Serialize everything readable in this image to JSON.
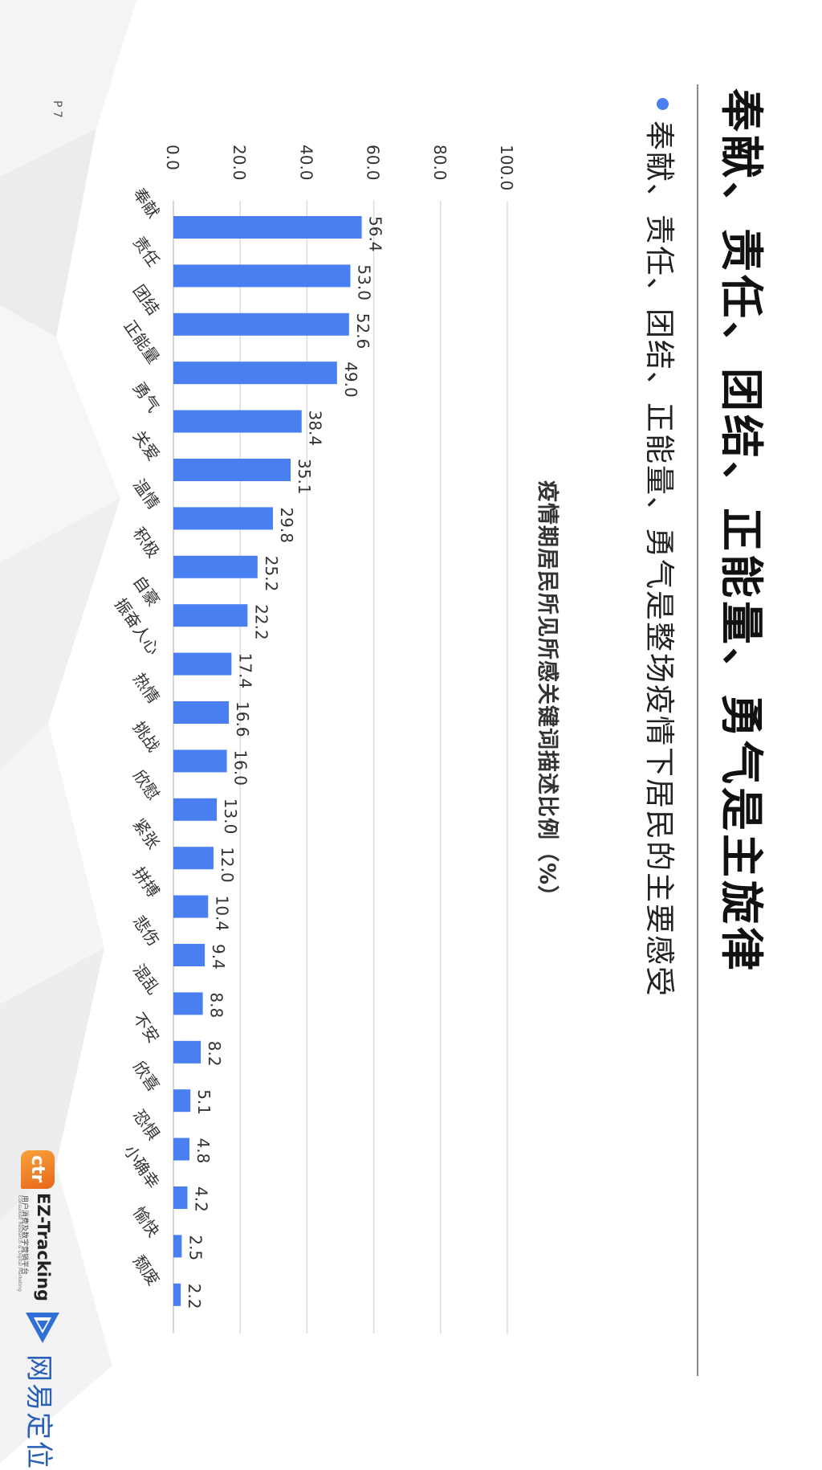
{
  "page": {
    "title": "奉献、责任、团结、正能量、勇气是主旋律",
    "subtitle": "奉献、责任、团结、正能量、勇气是整场疫情下居民的主要感受",
    "page_number": "P 7"
  },
  "logos": {
    "ez_tracking_name": "EZ-Tracking",
    "ez_tracking_cn": "用户消费及数字营销平台",
    "ez_tracking_en": "Consumer Research & Digital Marketing",
    "ctr_mark": "ctr",
    "netease_name": "网易定位"
  },
  "colors": {
    "bar": "#4a7ff2",
    "grid": "#dcdcdc",
    "accent": "#4a7ff2"
  },
  "chart_data": {
    "type": "bar",
    "orientation": "vertical-bars (page rotated 90° clockwise)",
    "title": "疫情期居民所见所感关键词描述比例（%）",
    "categories": [
      "奉献",
      "责任",
      "团结",
      "正能量",
      "勇气",
      "关爱",
      "温情",
      "积极",
      "自豪",
      "振奋人心",
      "热情",
      "挑战",
      "欣慰",
      "紧张",
      "拼搏",
      "悲伤",
      "混乱",
      "不安",
      "欣喜",
      "恐惧",
      "小确幸",
      "愉快",
      "颓废"
    ],
    "values": [
      56.4,
      53.0,
      52.6,
      49.0,
      38.4,
      35.1,
      29.8,
      25.2,
      22.2,
      17.4,
      16.6,
      16.0,
      13.0,
      12.0,
      10.4,
      9.4,
      8.8,
      8.2,
      5.1,
      4.8,
      4.2,
      2.5,
      2.2
    ],
    "value_labels": [
      "56.4",
      "53.0",
      "52.6",
      "49.0",
      "38.4",
      "35.1",
      "29.8",
      "25.2",
      "22.2",
      "17.4",
      "16.6",
      "16.0",
      "13.0",
      "12.0",
      "10.4",
      "9.4",
      "8.8",
      "8.2",
      "5.1",
      "4.8",
      "4.2",
      "2.5",
      "2.2"
    ],
    "ylim": [
      0,
      100
    ],
    "yticks": [
      "0.0",
      "20.0",
      "40.0",
      "60.0",
      "80.0",
      "100.0"
    ],
    "grid": true,
    "legend": "none"
  }
}
